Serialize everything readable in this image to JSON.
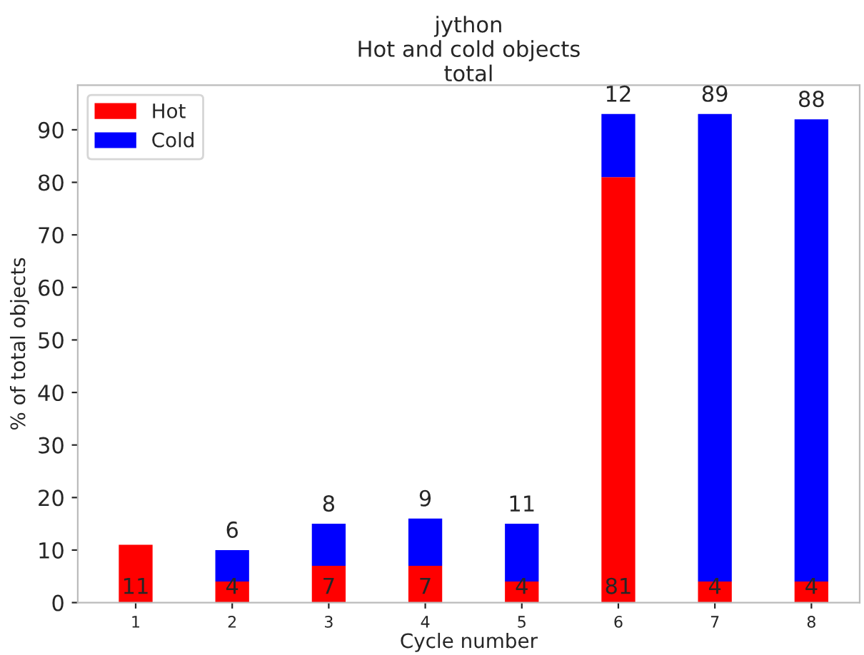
{
  "chart_data": {
    "type": "bar",
    "title": "jython\nHot and cold objects\ntotal",
    "xlabel": "Cycle number",
    "ylabel": "% of total objects",
    "categories": [
      "1",
      "2",
      "3",
      "4",
      "5",
      "6",
      "7",
      "8"
    ],
    "stacked": true,
    "series": [
      {
        "name": "Hot",
        "color": "#ff0000",
        "values": [
          11,
          4,
          7,
          7,
          4,
          81,
          4,
          4
        ],
        "value_labels": [
          "11",
          "4",
          "7",
          "7",
          "4",
          "81",
          "4",
          "4"
        ]
      },
      {
        "name": "Cold",
        "color": "#0000ff",
        "values": [
          0,
          6,
          8,
          9,
          11,
          12,
          89,
          88
        ],
        "value_labels": [
          null,
          "6",
          "8",
          "9",
          "11",
          "12",
          "89",
          "88"
        ]
      }
    ],
    "ylim": [
      0,
      98.5
    ],
    "yticks": [
      0,
      10,
      20,
      30,
      40,
      50,
      60,
      70,
      80,
      90
    ],
    "grid": false,
    "legend": "top left"
  }
}
